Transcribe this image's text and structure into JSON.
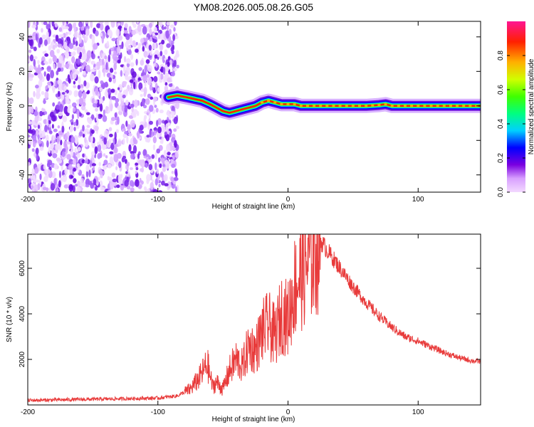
{
  "figure": {
    "title": "YM08.2026.005.08.26.G05"
  },
  "chart_data": [
    {
      "type": "heatmap",
      "title": "YM08.2026.005.08.26.G05",
      "xlabel": "Height of straight line (km)",
      "ylabel": "Frequency (Hz)",
      "xlim": [
        -200,
        148
      ],
      "ylim": [
        -50,
        49
      ],
      "xticks": [
        -200,
        -100,
        0,
        100
      ],
      "yticks": [
        -40,
        -20,
        0,
        20,
        40
      ],
      "colorbar": {
        "label": "Normalized spectral amplitude",
        "range": [
          0,
          1
        ],
        "ticks": [
          0.0,
          0.2,
          0.4,
          0.6,
          0.8
        ]
      },
      "noise_region": {
        "x_range": [
          -200,
          -88
        ],
        "description_values": "scattered low-amplitude speckle"
      },
      "ridge": {
        "x": [
          -92,
          -85,
          -78,
          -72,
          -66,
          -60,
          -55,
          -50,
          -45,
          -40,
          -35,
          -30,
          -25,
          -20,
          -15,
          -10,
          -5,
          0,
          5,
          10,
          20,
          40,
          60,
          70,
          75,
          80,
          100,
          120,
          148
        ],
        "y": [
          5,
          6,
          5,
          4,
          3,
          1,
          -1,
          -3,
          -4,
          -3,
          -2,
          -1,
          0,
          2,
          3,
          2,
          1,
          1,
          1,
          0,
          0,
          0,
          0,
          0.5,
          1,
          0,
          0,
          0,
          0
        ]
      }
    },
    {
      "type": "line",
      "xlabel": "Height of straight line (km)",
      "ylabel": "SNR (10 * v/v)",
      "xlim": [
        -200,
        148
      ],
      "ylim": [
        0,
        7500
      ],
      "xticks": [
        -200,
        -100,
        0,
        100
      ],
      "yticks": [
        2000,
        4000,
        6000
      ],
      "series": [
        {
          "name": "SNR",
          "color": "#e83a3a",
          "x": [
            -200,
            -150,
            -100,
            -85,
            -75,
            -68,
            -62,
            -58,
            -55,
            -50,
            -45,
            -40,
            -35,
            -30,
            -25,
            -20,
            -15,
            -10,
            -5,
            0,
            5,
            10,
            15,
            20,
            25,
            30,
            40,
            50,
            60,
            70,
            80,
            90,
            100,
            110,
            120,
            130,
            140,
            148
          ],
          "y": [
            200,
            250,
            300,
            400,
            700,
            1200,
            1800,
            800,
            1000,
            700,
            1500,
            2000,
            1700,
            2600,
            2400,
            3200,
            3500,
            3000,
            4000,
            3800,
            5200,
            5800,
            6300,
            6800,
            7200,
            6800,
            6000,
            5200,
            4500,
            3900,
            3400,
            3000,
            2800,
            2550,
            2300,
            2100,
            1950,
            1900
          ]
        }
      ]
    }
  ]
}
